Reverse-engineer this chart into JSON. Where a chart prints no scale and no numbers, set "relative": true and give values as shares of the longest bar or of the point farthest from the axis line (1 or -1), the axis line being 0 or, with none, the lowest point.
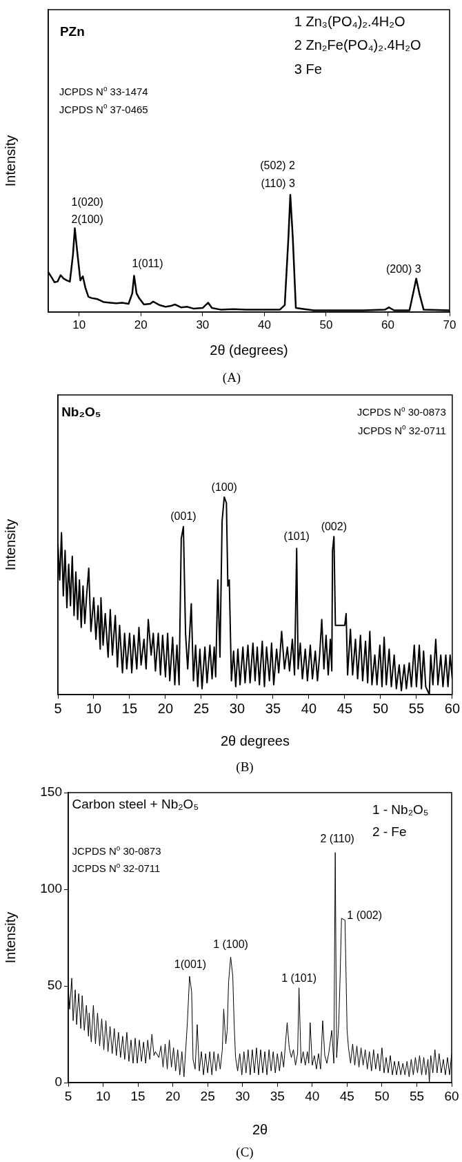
{
  "chart_data": [
    {
      "type": "line",
      "title": "PZn",
      "xlabel": "2θ (degrees)",
      "ylabel": "Intensity",
      "relative": true,
      "color": "#000000",
      "marker": "none",
      "legend": false,
      "grid": false,
      "xlim": [
        5,
        70
      ],
      "xticks": [
        10,
        20,
        30,
        40,
        50,
        60,
        70
      ],
      "x": [
        5,
        5.5,
        6,
        6.5,
        7,
        7.5,
        8,
        8.5,
        9,
        9.3,
        9.7,
        10.2,
        10.6,
        11,
        11.5,
        12,
        13,
        14,
        15,
        16,
        17,
        18,
        18.6,
        18.9,
        19.3,
        19.7,
        20.5,
        21.5,
        22,
        23,
        24,
        25,
        25.5,
        26.5,
        27.5,
        28.5,
        30,
        30.9,
        31.5,
        33,
        35,
        37,
        40,
        42.5,
        43.3,
        43.9,
        44.2,
        44.6,
        45.1,
        46.5,
        48,
        52,
        56,
        59.5,
        60.2,
        61,
        63.5,
        64.1,
        64.6,
        65.1,
        65.8,
        70
      ],
      "values": [
        0.34,
        0.3,
        0.255,
        0.26,
        0.315,
        0.285,
        0.27,
        0.26,
        0.49,
        0.715,
        0.51,
        0.27,
        0.305,
        0.21,
        0.13,
        0.12,
        0.11,
        0.085,
        0.08,
        0.075,
        0.08,
        0.07,
        0.16,
        0.31,
        0.16,
        0.12,
        0.065,
        0.07,
        0.09,
        0.06,
        0.045,
        0.055,
        0.065,
        0.04,
        0.045,
        0.03,
        0.035,
        0.08,
        0.035,
        0.02,
        0.025,
        0.02,
        0.02,
        0.02,
        0.06,
        0.64,
        1,
        0.64,
        0.035,
        0.025,
        0.015,
        0.015,
        0.015,
        0.02,
        0.04,
        0.015,
        0.015,
        0.16,
        0.285,
        0.16,
        0.02,
        0.015
      ],
      "annotations": [
        "1 Zn₃(PO₄)₂.4H₂O",
        "2 Zn₂Fe(PO₄)₂.4H₂O",
        "3 Fe",
        "JCPDS N$^{o}$ 33-1474",
        "JCPDS N$^{o}$ 37-0465",
        {
          "text": "1(020)",
          "x": 9.3,
          "y": 0.715
        },
        {
          "text": "2(100)",
          "x": 9.3,
          "y": 0.715
        },
        {
          "text": "1(011)",
          "x": 18.9,
          "y": 0.31
        },
        {
          "text": "(502) 2",
          "x": 44.2,
          "y": 1
        },
        {
          "text": "(110) 3",
          "x": 44.2,
          "y": 1
        },
        {
          "text": "(200) 3",
          "x": 64.6,
          "y": 0.285
        },
        "(A)"
      ]
    },
    {
      "type": "line",
      "title": "Nb₂O₅",
      "xlabel": "2θ degrees",
      "ylabel": "Intensity",
      "relative": true,
      "color": "#000000",
      "marker": "none",
      "legend": false,
      "grid": false,
      "xlim": [
        5,
        60
      ],
      "xticks": [
        5,
        10,
        15,
        20,
        25,
        30,
        35,
        40,
        45,
        50,
        55,
        60
      ],
      "x": [
        5,
        5.25,
        5.5,
        5.75,
        6,
        6.25,
        6.5,
        6.75,
        7,
        7.25,
        7.5,
        7.75,
        8,
        8.25,
        8.5,
        8.75,
        9,
        9.3,
        9.6,
        10,
        10.3,
        10.6,
        10.9,
        11,
        11.3,
        11.6,
        12,
        12.3,
        12.6,
        13,
        13.3,
        13.6,
        14,
        14.3,
        14.6,
        15,
        15.3,
        15.6,
        16,
        16.3,
        16.6,
        17,
        17.3,
        17.6,
        18,
        18.3,
        18.6,
        19,
        19.3,
        19.6,
        20,
        20.3,
        20.6,
        21,
        21.3,
        21.6,
        21.9,
        22.2,
        22.5,
        22.8,
        23.1,
        23.6,
        23.9,
        24.2,
        24.5,
        24.8,
        25.1,
        25.5,
        25.8,
        26.2,
        26.5,
        26.8,
        27,
        27.3,
        27.6,
        27.9,
        28.2,
        28.5,
        28.7,
        28.9,
        29.2,
        29.5,
        29.8,
        30.1,
        30.4,
        30.8,
        31.1,
        31.5,
        31.8,
        32.2,
        32.5,
        32.8,
        33.1,
        33.5,
        33.8,
        34.1,
        34.5,
        34.8,
        35.1,
        35.5,
        35.8,
        36.2,
        36.6,
        37,
        37.3,
        37.7,
        38,
        38.3,
        38.5,
        38.8,
        39.1,
        39.5,
        39.8,
        40.2,
        40.5,
        40.9,
        41.2,
        41.5,
        41.8,
        42.1,
        42.4,
        42.7,
        43,
        43.2,
        43.3,
        43.5,
        43.7,
        43.8,
        45,
        45.2,
        45.4,
        45.8,
        46.1,
        46.5,
        46.8,
        47.2,
        47.5,
        47.9,
        48.2,
        48.5,
        48.8,
        49.2,
        49.5,
        49.9,
        50.2,
        50.5,
        50.8,
        51.2,
        51.5,
        51.9,
        52.2,
        52.6,
        52.9,
        53.3,
        53.6,
        54,
        54.3,
        54.7,
        55,
        55.4,
        55.7,
        56,
        56.3,
        56.8,
        57,
        57.3,
        57.7,
        58,
        58.4,
        58.7,
        59.1,
        59.4,
        59.7,
        60
      ],
      "values": [
        0.76,
        0.58,
        0.82,
        0.5,
        0.73,
        0.44,
        0.66,
        0.45,
        0.7,
        0.4,
        0.62,
        0.38,
        0.58,
        0.34,
        0.55,
        0.36,
        0.5,
        0.64,
        0.32,
        0.49,
        0.28,
        0.45,
        0.23,
        0.49,
        0.25,
        0.41,
        0.19,
        0.43,
        0.2,
        0.4,
        0.14,
        0.35,
        0.11,
        0.31,
        0.13,
        0.31,
        0.11,
        0.3,
        0.13,
        0.34,
        0.15,
        0.28,
        0.13,
        0.38,
        0.2,
        0.31,
        0.12,
        0.31,
        0.1,
        0.3,
        0.09,
        0.31,
        0.07,
        0.29,
        0.05,
        0.25,
        0.05,
        0.79,
        0.85,
        0.31,
        0.13,
        0.46,
        0.07,
        0.25,
        0.04,
        0.23,
        0.03,
        0.24,
        0.06,
        0.25,
        0.08,
        0.24,
        0.09,
        0.58,
        0.19,
        0.88,
        1,
        0.97,
        0.55,
        0.58,
        0.07,
        0.22,
        0.04,
        0.23,
        0.05,
        0.24,
        0.06,
        0.25,
        0.06,
        0.26,
        0.07,
        0.24,
        0.05,
        0.27,
        0.04,
        0.24,
        0.07,
        0.26,
        0.05,
        0.23,
        0.11,
        0.32,
        0.13,
        0.24,
        0.12,
        0.28,
        0.1,
        0.74,
        0.13,
        0.26,
        0.08,
        0.23,
        0.07,
        0.25,
        0.08,
        0.22,
        0.07,
        0.2,
        0.38,
        0.13,
        0.3,
        0.1,
        0.28,
        0.12,
        0.73,
        0.8,
        0.35,
        0.35,
        0.35,
        0.41,
        0.1,
        0.33,
        0.1,
        0.28,
        0.08,
        0.3,
        0.07,
        0.27,
        0.06,
        0.32,
        0.05,
        0.2,
        0.05,
        0.25,
        0.04,
        0.29,
        0.05,
        0.23,
        0.04,
        0.2,
        0.03,
        0.15,
        0.02,
        0.15,
        0.03,
        0.16,
        0.04,
        0.25,
        0.04,
        0.25,
        0.03,
        0.22,
        0.04,
        0,
        0.2,
        0.05,
        0.28,
        0.05,
        0.2,
        0.04,
        0.2,
        0.04,
        0.2,
        0.08
      ],
      "annotations": [
        "JCPDS N$^{o}$ 30-0873",
        "JCPDS N$^{o}$ 32-0711",
        {
          "text": "(001)",
          "x": 22.5,
          "y": 0.85
        },
        {
          "text": "(100)",
          "x": 28.2,
          "y": 1
        },
        {
          "text": "(101)",
          "x": 38.3,
          "y": 0.74
        },
        {
          "text": "(002)",
          "x": 43.5,
          "y": 0.8
        },
        "(B)"
      ]
    },
    {
      "type": "line",
      "title": "Carbon steel + Nb₂O₅",
      "xlabel": "2θ",
      "ylabel": "Intensity",
      "color": "#000000",
      "marker": "none",
      "legend": false,
      "grid": false,
      "xlim": [
        5,
        60
      ],
      "xticks": [
        5,
        10,
        15,
        20,
        25,
        30,
        35,
        40,
        45,
        50,
        55,
        60
      ],
      "ylim": [
        0,
        150
      ],
      "yticks": [
        0,
        50,
        100,
        150
      ],
      "x": [
        5,
        5.2,
        5.5,
        5.7,
        6,
        6.2,
        6.5,
        6.8,
        7,
        7.3,
        7.6,
        7.9,
        8,
        8.3,
        8.6,
        8.9,
        9.2,
        9.5,
        9.8,
        10.1,
        10.4,
        10.7,
        11,
        11.3,
        11.6,
        11.9,
        12.2,
        12.5,
        12.8,
        13.1,
        13.4,
        13.7,
        14,
        14.3,
        14.6,
        14.9,
        15.2,
        15.5,
        15.8,
        16.1,
        16.4,
        16.7,
        17,
        17.3,
        17.5,
        18,
        18.3,
        18.6,
        18.9,
        19.2,
        19.5,
        19.8,
        20.1,
        20.4,
        20.7,
        21,
        21.3,
        21.6,
        21.9,
        22.1,
        22.4,
        22.7,
        22.9,
        23.2,
        23.5,
        23.8,
        24.1,
        24.4,
        24.7,
        25,
        25.3,
        25.6,
        25.9,
        26.2,
        26.5,
        26.8,
        27.1,
        27.3,
        27.6,
        27.8,
        28,
        28.3,
        28.6,
        28.8,
        29,
        29.3,
        29.6,
        29.9,
        30.2,
        30.5,
        30.8,
        31.1,
        31.4,
        31.7,
        32,
        32.3,
        32.6,
        32.9,
        33.2,
        33.5,
        33.8,
        34.1,
        34.4,
        34.7,
        35,
        35.3,
        35.6,
        35.9,
        36.2,
        36.4,
        36.7,
        37,
        37.3,
        37.6,
        37.9,
        38.1,
        38.4,
        38.7,
        39,
        39.3,
        39.5,
        39.7,
        40,
        40.3,
        40.6,
        40.9,
        41.2,
        41.5,
        41.8,
        42.1,
        42.4,
        42.8,
        43.1,
        43.3,
        43.5,
        43.8,
        44,
        44.2,
        44.7,
        45,
        45.2,
        45.5,
        45.8,
        46.1,
        46.4,
        46.7,
        47,
        47.3,
        47.6,
        47.9,
        48.2,
        48.5,
        48.8,
        49.1,
        49.4,
        49.7,
        50,
        50.3,
        50.6,
        50.9,
        51.2,
        51.5,
        51.8,
        52.1,
        52.4,
        52.7,
        53,
        53.3,
        53.6,
        53.9,
        54.2,
        54.5,
        54.8,
        55.1,
        55.4,
        55.7,
        56,
        56.3,
        56.6,
        56.8,
        57,
        57.3,
        57.6,
        57.9,
        58.2,
        58.5,
        58.8,
        59.1,
        59.4,
        59.7,
        60
      ],
      "values": [
        50,
        38,
        54,
        32,
        48,
        30,
        46,
        28,
        45,
        27,
        40,
        24,
        36,
        21,
        40,
        20,
        36,
        19,
        33,
        17,
        32,
        16,
        29,
        15,
        28,
        14,
        26,
        13,
        24,
        12,
        26,
        11,
        22,
        10,
        23,
        10,
        22,
        11,
        21,
        10,
        22,
        12,
        25,
        14,
        16,
        13,
        19,
        8,
        20,
        7,
        22,
        8,
        18,
        6,
        17,
        4,
        16,
        3,
        20,
        32,
        55,
        47,
        12,
        7,
        30,
        6,
        16,
        4,
        15,
        5,
        16,
        4,
        16,
        6,
        15,
        7,
        17,
        38,
        20,
        27,
        52,
        65,
        55,
        30,
        13,
        6,
        15,
        4,
        16,
        5,
        17,
        4,
        17,
        5,
        18,
        4,
        17,
        5,
        16,
        4,
        17,
        6,
        16,
        5,
        15,
        6,
        16,
        8,
        22,
        31,
        18,
        13,
        17,
        9,
        15,
        49,
        10,
        16,
        9,
        16,
        10,
        31,
        9,
        14,
        7,
        15,
        7,
        32,
        14,
        10,
        16,
        27,
        10,
        119,
        13,
        30,
        55,
        85,
        84,
        27,
        18,
        10,
        20,
        9,
        19,
        8,
        18,
        9,
        17,
        7,
        16,
        6,
        17,
        7,
        15,
        6,
        18,
        5,
        13,
        5,
        14,
        4,
        11,
        4,
        11,
        4,
        10,
        4,
        11,
        3,
        12,
        4,
        13,
        5,
        14,
        4,
        13,
        4,
        12,
        0,
        14,
        5,
        17,
        5,
        15,
        5,
        12,
        4,
        13,
        4,
        15
      ],
      "annotations": [
        "1 - Nb₂O₅",
        "2 - Fe",
        "JCPDS N$^{o}$ 30-0873",
        "JCPDS N$^{o}$ 32-0711",
        {
          "text": "1(001)",
          "x": 22.5,
          "y": 55
        },
        {
          "text": "1 (100)",
          "x": 28.3,
          "y": 65
        },
        {
          "text": "1 (101)",
          "x": 38.1,
          "y": 49
        },
        {
          "text": "2 (110)",
          "x": 43.3,
          "y": 119
        },
        {
          "text": "1 (002)",
          "x": 44.5,
          "y": 85
        },
        "(C)"
      ]
    }
  ]
}
